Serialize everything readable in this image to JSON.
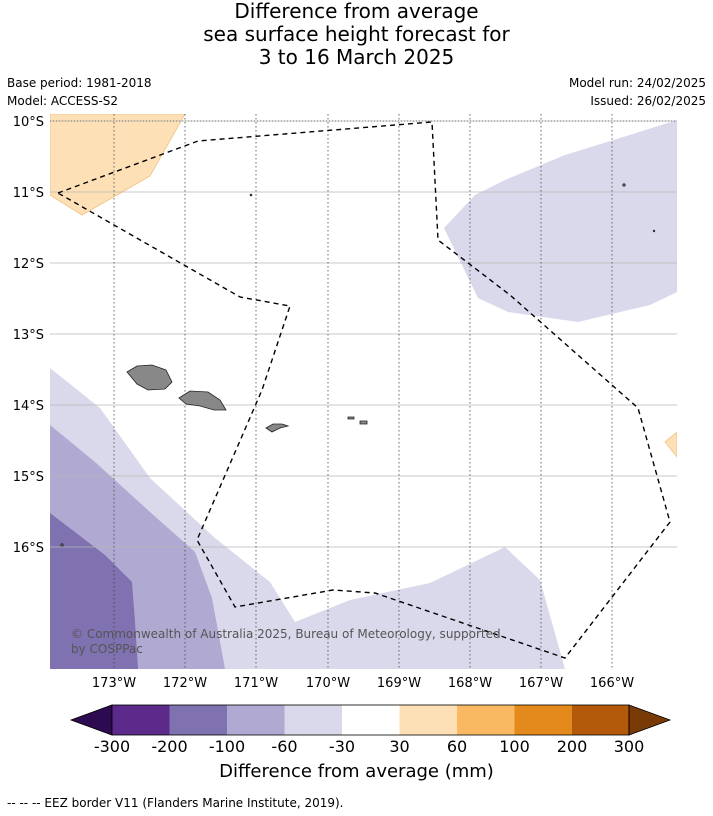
{
  "title": {
    "line1": "Difference from average",
    "line2": "sea surface height forecast for",
    "line3": "3 to 16 March 2025"
  },
  "meta": {
    "base_period": "Base period: 1981-2018",
    "model": "Model: ACCESS-S2",
    "model_run": "Model run: 24/02/2025",
    "issued": "Issued: 26/02/2025"
  },
  "map": {
    "lat_labels": [
      "10°S",
      "11°S",
      "12°S",
      "13°S",
      "14°S",
      "15°S",
      "16°S"
    ],
    "lon_labels": [
      "173°W",
      "172°W",
      "171°W",
      "170°W",
      "169°W",
      "168°W",
      "167°W",
      "166°W"
    ],
    "copyright_line1": "© Commonwealth of Australia 2025, Bureau of Meteorology, supported",
    "copyright_line2": "by COSPPac"
  },
  "colorbar": {
    "labels": [
      "-300",
      "-200",
      "-100",
      "-60",
      "-30",
      "30",
      "60",
      "100",
      "200",
      "300"
    ],
    "colors": [
      "#2d0a52",
      "#5b2a8a",
      "#8071b0",
      "#b0a9d2",
      "#d9d9eb",
      "#ffffff",
      "#fde0b6",
      "#f9b862",
      "#e48a1c",
      "#b35a0a",
      "#7a3a06"
    ],
    "title": "Difference from average (mm)"
  },
  "footer": "--  --  -- EEZ border V11 (Flanders Marine Institute, 2019)."
}
